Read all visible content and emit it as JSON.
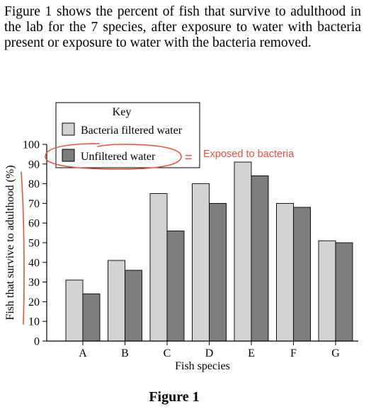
{
  "intro_text": "Figure 1 shows the percent of fish that survive to adulthood in the lab for the 7 species, after exposure to water with bacteria present or exposure to water with the bacteria removed.",
  "figure_caption": "Figure 1",
  "annotation": {
    "equals_sign": "=",
    "note": "Exposed to bacteria",
    "color": "#e8523a"
  },
  "chart_data": {
    "type": "bar",
    "title": "",
    "xlabel": "Fish species",
    "ylabel": "Fish that survive to adulthood (%)",
    "ylim": [
      0,
      100
    ],
    "yticks": [
      0,
      10,
      20,
      30,
      40,
      50,
      60,
      70,
      80,
      90,
      100
    ],
    "categories": [
      "A",
      "B",
      "C",
      "D",
      "E",
      "F",
      "G"
    ],
    "legend_title": "Key",
    "legend_position": "top-left",
    "grid": false,
    "series": [
      {
        "name": "Bacteria filtered water",
        "color": "#d3d3d3",
        "values": [
          31,
          41,
          75,
          80,
          91,
          70,
          51
        ]
      },
      {
        "name": "Unfiltered water",
        "color": "#7d7d7d",
        "values": [
          24,
          36,
          56,
          70,
          84,
          68,
          50
        ]
      }
    ]
  }
}
